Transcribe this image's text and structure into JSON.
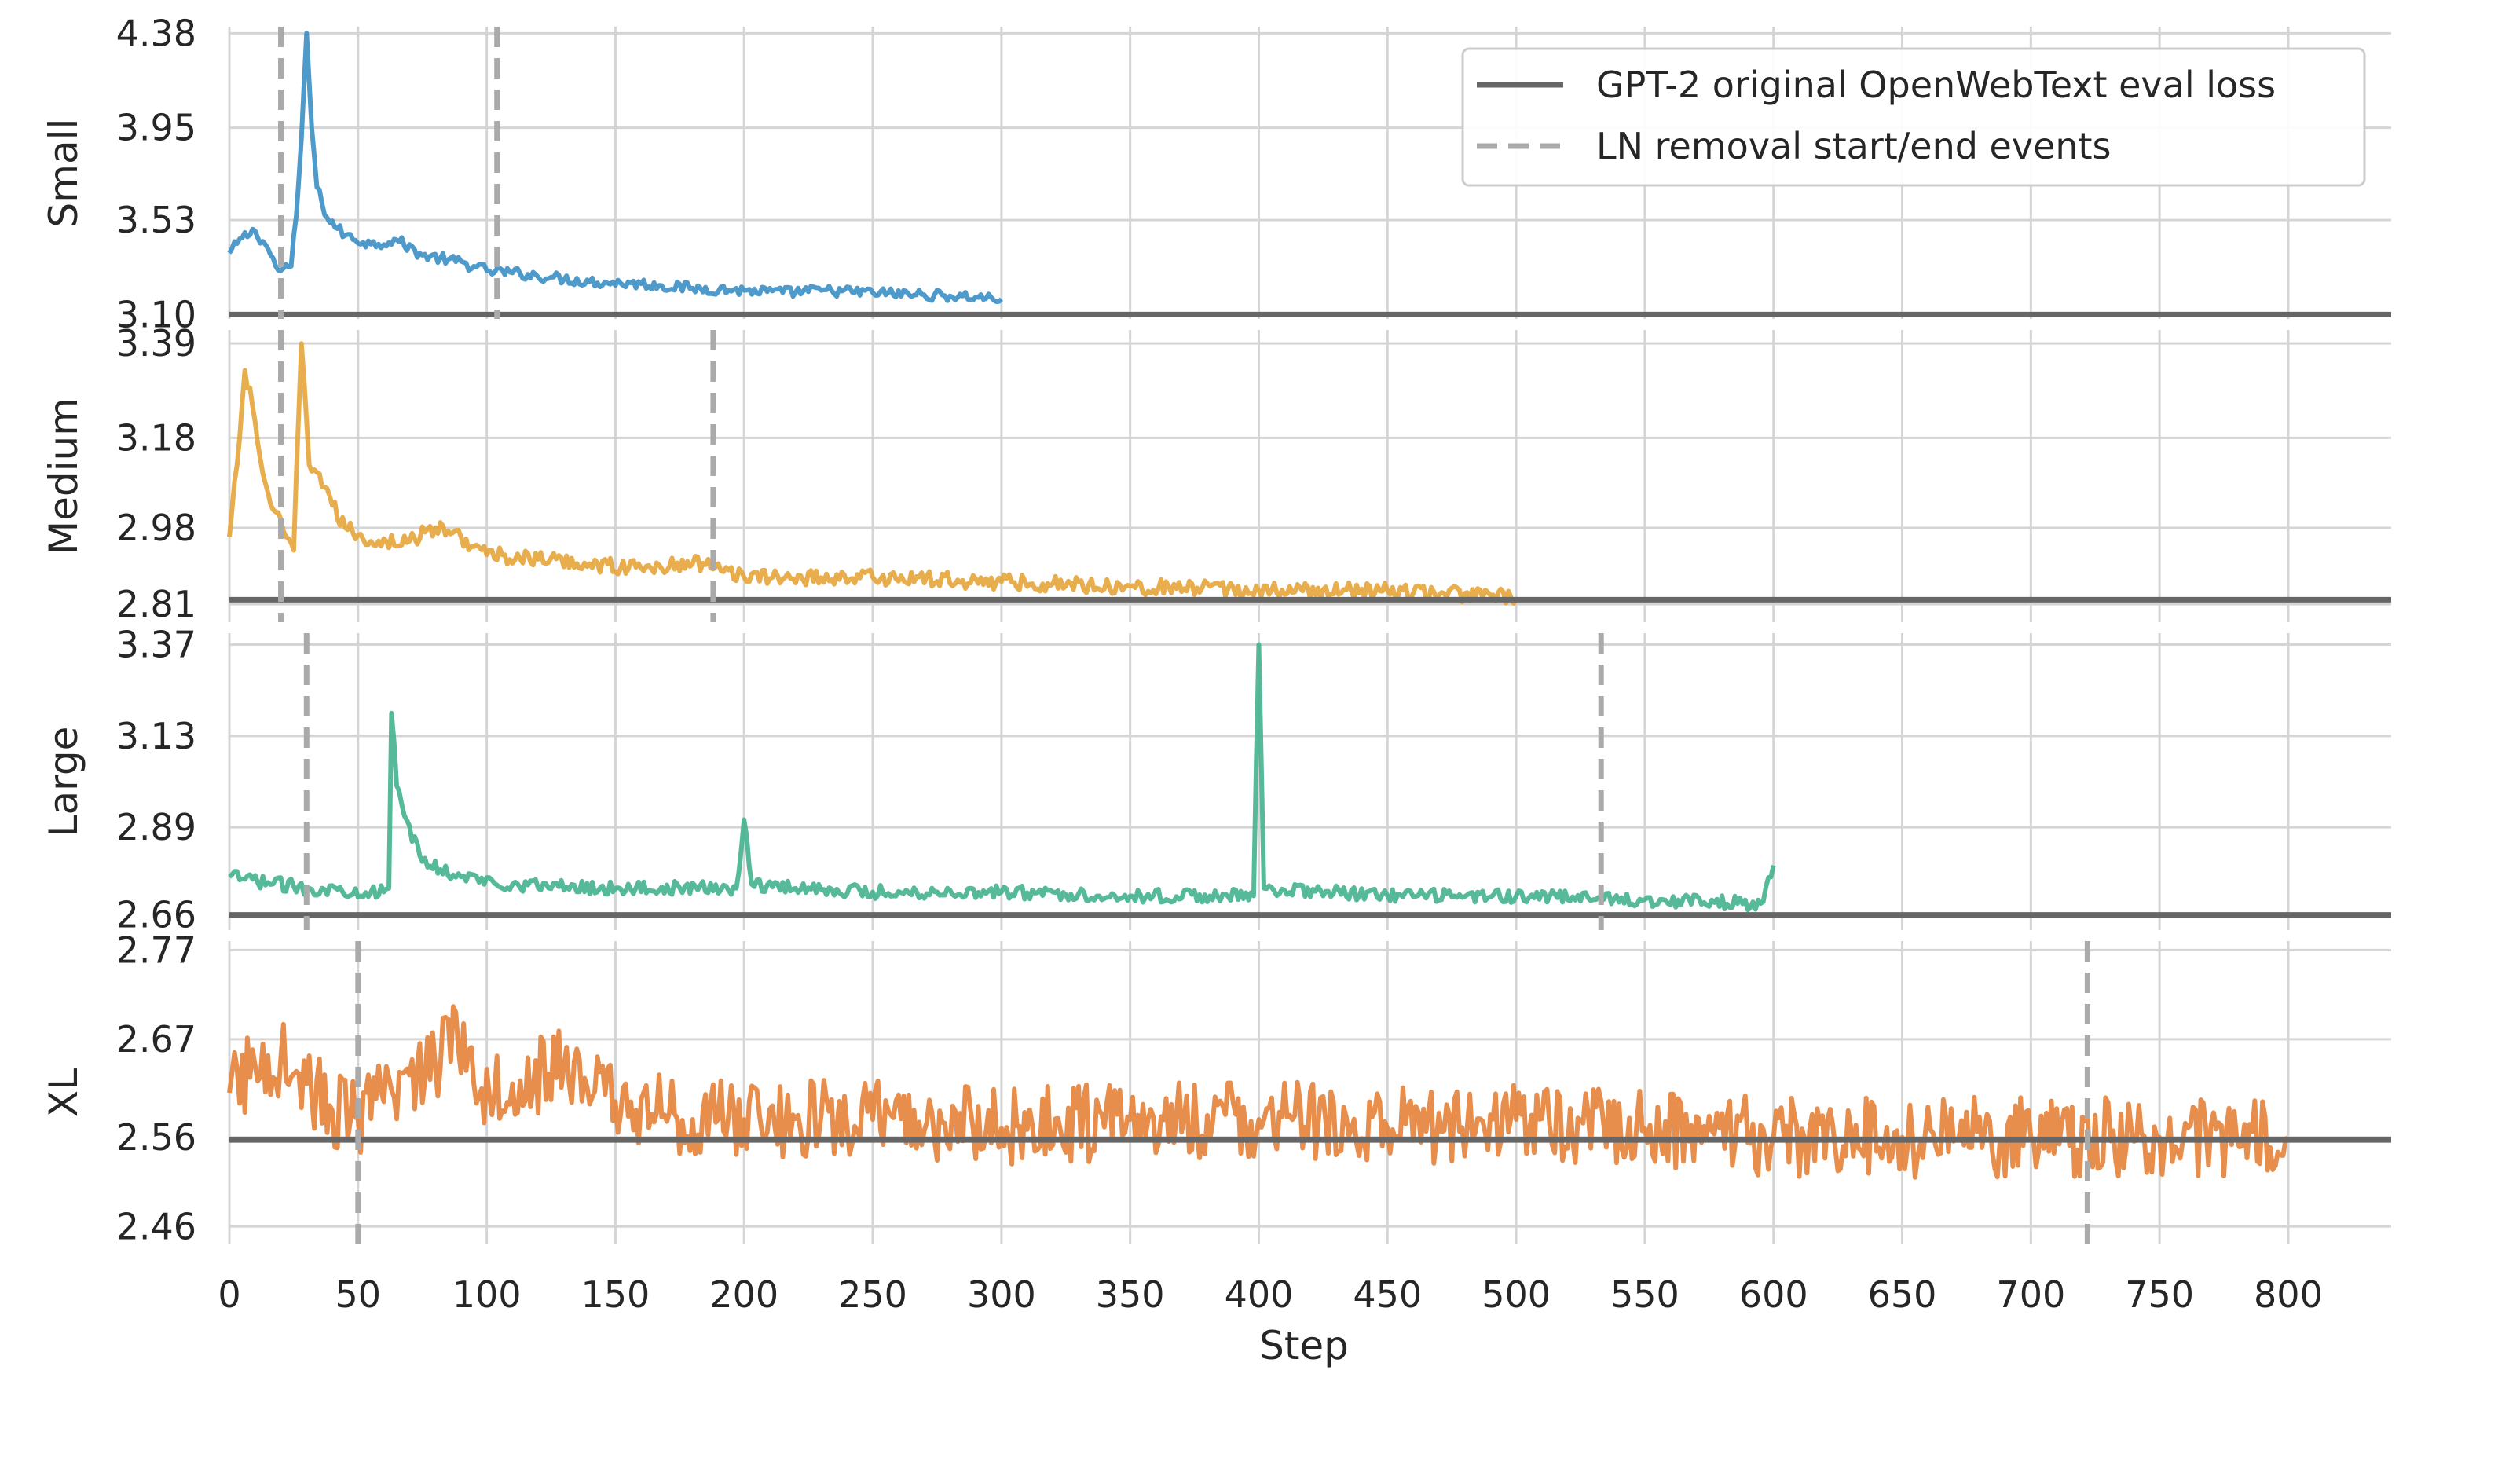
{
  "chart_data": {
    "type": "line",
    "layout": "4 stacked panels sharing x axis",
    "xlabel": "Step",
    "xlim": [
      0,
      840
    ],
    "xticks": [
      0,
      50,
      100,
      150,
      200,
      250,
      300,
      350,
      400,
      450,
      500,
      550,
      600,
      650,
      700,
      750,
      800
    ],
    "grid": true,
    "legend": {
      "placement": "top-right of first panel",
      "entries": [
        {
          "label": "GPT-2 original OpenWebText eval loss",
          "style": "solid",
          "color": "#666666"
        },
        {
          "label": "LN removal start/end events",
          "style": "dashed",
          "color": "#aaaaaa"
        }
      ]
    },
    "panels": [
      {
        "ylabel": "Small",
        "color": "#3b8fc4",
        "yticks": [
          3.1,
          3.53,
          3.95,
          4.38
        ],
        "ytick_labels": [
          "3.10",
          "3.53",
          "3.95",
          "4.38"
        ],
        "ylim": [
          3.08,
          4.41
        ],
        "baseline": 3.1,
        "events": [
          20,
          104
        ],
        "series": {
          "name": "",
          "x_end": 300,
          "points": [
            [
              0,
              3.38
            ],
            [
              5,
              3.45
            ],
            [
              10,
              3.48
            ],
            [
              15,
              3.4
            ],
            [
              18,
              3.32
            ],
            [
              20,
              3.3
            ],
            [
              24,
              3.32
            ],
            [
              26,
              3.55
            ],
            [
              28,
              3.9
            ],
            [
              30,
              4.38
            ],
            [
              32,
              3.95
            ],
            [
              34,
              3.68
            ],
            [
              38,
              3.54
            ],
            [
              45,
              3.46
            ],
            [
              55,
              3.42
            ],
            [
              65,
              3.44
            ],
            [
              75,
              3.37
            ],
            [
              85,
              3.35
            ],
            [
              95,
              3.32
            ],
            [
              100,
              3.3
            ],
            [
              110,
              3.29
            ],
            [
              125,
              3.27
            ],
            [
              140,
              3.25
            ],
            [
              160,
              3.24
            ],
            [
              180,
              3.22
            ],
            [
              200,
              3.21
            ],
            [
              215,
              3.2
            ],
            [
              230,
              3.21
            ],
            [
              250,
              3.2
            ],
            [
              270,
              3.19
            ],
            [
              290,
              3.18
            ],
            [
              300,
              3.17
            ]
          ],
          "noise": 0.025
        }
      },
      {
        "ylabel": "Medium",
        "color": "#e6a43a",
        "yticks": [
          2.81,
          2.98,
          3.18,
          3.39
        ],
        "ytick_labels": [
          "2.81",
          "2.98",
          "3.18",
          "3.39"
        ],
        "ylim": [
          2.77,
          3.42
        ],
        "baseline": 2.82,
        "events": [
          20,
          188
        ],
        "series": {
          "name": "",
          "x_end": 500,
          "points": [
            [
              0,
              2.96
            ],
            [
              3,
              3.12
            ],
            [
              6,
              3.33
            ],
            [
              9,
              3.25
            ],
            [
              13,
              3.1
            ],
            [
              17,
              3.02
            ],
            [
              22,
              2.96
            ],
            [
              25,
              2.93
            ],
            [
              28,
              3.39
            ],
            [
              31,
              3.12
            ],
            [
              35,
              3.1
            ],
            [
              40,
              3.03
            ],
            [
              45,
              2.98
            ],
            [
              55,
              2.95
            ],
            [
              70,
              2.95
            ],
            [
              80,
              2.98
            ],
            [
              90,
              2.96
            ],
            [
              100,
              2.92
            ],
            [
              120,
              2.91
            ],
            [
              140,
              2.9
            ],
            [
              160,
              2.89
            ],
            [
              180,
              2.9
            ],
            [
              190,
              2.9
            ],
            [
              200,
              2.87
            ],
            [
              250,
              2.87
            ],
            [
              300,
              2.86
            ],
            [
              350,
              2.85
            ],
            [
              400,
              2.84
            ],
            [
              450,
              2.84
            ],
            [
              490,
              2.83
            ],
            [
              500,
              2.82
            ]
          ],
          "noise": 0.018
        }
      },
      {
        "ylabel": "Large",
        "color": "#44b38f",
        "yticks": [
          2.66,
          2.89,
          3.13,
          3.37
        ],
        "ytick_labels": [
          "2.66",
          "2.89",
          "3.13",
          "3.37"
        ],
        "ylim": [
          2.62,
          3.4
        ],
        "baseline": 2.66,
        "events": [
          30,
          533
        ],
        "series": {
          "name": "",
          "x_end": 600,
          "points": [
            [
              0,
              2.76
            ],
            [
              30,
              2.73
            ],
            [
              60,
              2.72
            ],
            [
              62,
              2.73
            ],
            [
              63,
              3.19
            ],
            [
              65,
              3.0
            ],
            [
              68,
              2.92
            ],
            [
              75,
              2.8
            ],
            [
              90,
              2.76
            ],
            [
              110,
              2.74
            ],
            [
              150,
              2.73
            ],
            [
              197,
              2.73
            ],
            [
              200,
              2.91
            ],
            [
              203,
              2.74
            ],
            [
              250,
              2.72
            ],
            [
              300,
              2.72
            ],
            [
              350,
              2.71
            ],
            [
              398,
              2.71
            ],
            [
              400,
              3.37
            ],
            [
              402,
              2.73
            ],
            [
              450,
              2.71
            ],
            [
              500,
              2.71
            ],
            [
              550,
              2.7
            ],
            [
              595,
              2.69
            ],
            [
              600,
              2.79
            ]
          ],
          "noise": 0.018
        }
      },
      {
        "ylabel": "XL",
        "color": "#e5823a",
        "yticks": [
          2.46,
          2.56,
          2.67,
          2.77
        ],
        "ytick_labels": [
          "2.46",
          "2.56",
          "2.67",
          "2.77"
        ],
        "ylim": [
          2.44,
          2.78
        ],
        "baseline": 2.557,
        "events": [
          50,
          722
        ],
        "series": {
          "name": "",
          "x_end": 800,
          "points": [
            [
              0,
              2.61
            ],
            [
              10,
              2.64
            ],
            [
              20,
              2.65
            ],
            [
              30,
              2.62
            ],
            [
              40,
              2.59
            ],
            [
              50,
              2.58
            ],
            [
              60,
              2.6
            ],
            [
              70,
              2.63
            ],
            [
              80,
              2.64
            ],
            [
              88,
              2.7
            ],
            [
              95,
              2.62
            ],
            [
              110,
              2.62
            ],
            [
              130,
              2.64
            ],
            [
              150,
              2.6
            ],
            [
              180,
              2.58
            ],
            [
              200,
              2.58
            ],
            [
              250,
              2.58
            ],
            [
              300,
              2.57
            ],
            [
              350,
              2.58
            ],
            [
              400,
              2.58
            ],
            [
              450,
              2.57
            ],
            [
              500,
              2.58
            ],
            [
              550,
              2.57
            ],
            [
              600,
              2.56
            ],
            [
              650,
              2.56
            ],
            [
              700,
              2.56
            ],
            [
              750,
              2.56
            ],
            [
              800,
              2.56
            ]
          ],
          "noise": 0.045
        }
      }
    ]
  }
}
